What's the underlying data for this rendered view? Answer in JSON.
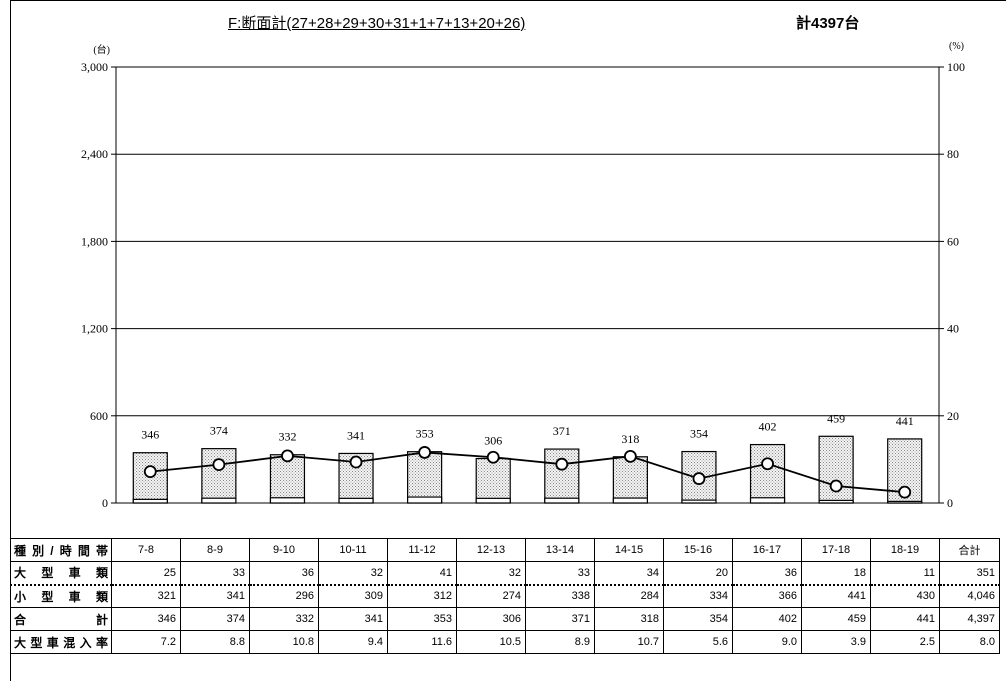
{
  "title": "F:断面計(27+28+29+30+31+1+7+13+20+26)",
  "total_label": "計4397台",
  "chart_data": {
    "type": "bar",
    "categories": [
      "7-8",
      "8-9",
      "9-10",
      "10-11",
      "11-12",
      "12-13",
      "13-14",
      "14-15",
      "15-16",
      "16-17",
      "17-18",
      "18-19"
    ],
    "series": [
      {
        "values": [
          25,
          33,
          36,
          32,
          41,
          32,
          33,
          34,
          20,
          36,
          18,
          11
        ]
      },
      {
        "values": [
          321,
          341,
          296,
          309,
          312,
          274,
          338,
          284,
          334,
          366,
          441,
          430
        ]
      },
      {
        "values": [
          346,
          374,
          332,
          341,
          353,
          306,
          371,
          318,
          354,
          402,
          459,
          441
        ]
      },
      {
        "values": [
          7.2,
          8.8,
          10.8,
          9.4,
          11.6,
          10.5,
          8.9,
          10.7,
          5.6,
          9.0,
          3.9,
          2.5
        ],
        "axis": "right"
      }
    ],
    "left_unit": "(台)",
    "right_unit": "(%)",
    "left_ticks": [
      "0",
      "600",
      "1,200",
      "1,800",
      "2,400",
      "3,000"
    ],
    "right_ticks": [
      "0",
      "20",
      "40",
      "60",
      "80",
      "100"
    ],
    "ylim_left": [
      0,
      3000
    ],
    "ylim_right": [
      0,
      100
    ],
    "grid": true
  },
  "table": {
    "header_label": "種別/時間帯",
    "total_header": "合計",
    "rows": [
      {
        "label": "大型車類",
        "values": [
          "25",
          "33",
          "36",
          "32",
          "41",
          "32",
          "33",
          "34",
          "20",
          "36",
          "18",
          "11"
        ],
        "total": "351"
      },
      {
        "label": "小型車類",
        "values": [
          "321",
          "341",
          "296",
          "309",
          "312",
          "274",
          "338",
          "284",
          "334",
          "366",
          "441",
          "430"
        ],
        "total": "4,046"
      },
      {
        "label": "合計",
        "values": [
          "346",
          "374",
          "332",
          "341",
          "353",
          "306",
          "371",
          "318",
          "354",
          "402",
          "459",
          "441"
        ],
        "total": "4,397"
      },
      {
        "label": "大型車混入率",
        "values": [
          "7.2",
          "8.8",
          "10.8",
          "9.4",
          "11.6",
          "10.5",
          "8.9",
          "10.7",
          "5.6",
          "9.0",
          "3.9",
          "2.5"
        ],
        "total": "8.0"
      }
    ]
  }
}
